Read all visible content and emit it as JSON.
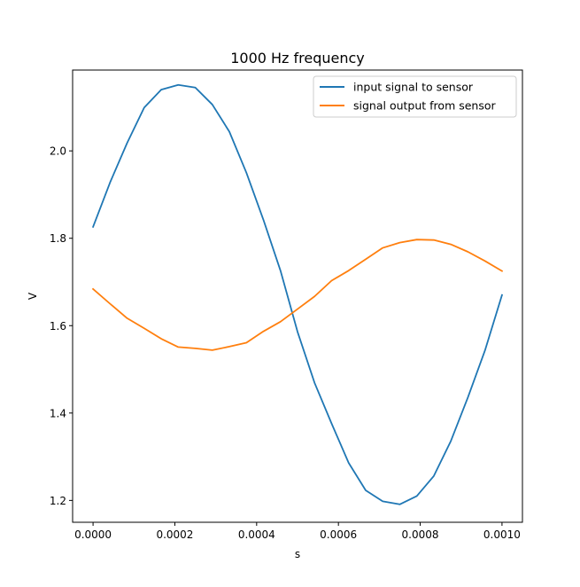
{
  "chart_data": {
    "type": "line",
    "title": "1000 Hz frequency",
    "xlabel": "s",
    "ylabel": "V",
    "xlim": [
      -5e-05,
      0.00105
    ],
    "ylim": [
      1.15,
      2.185
    ],
    "xticks": [
      0.0,
      0.0002,
      0.0004,
      0.0006,
      0.0008,
      0.001
    ],
    "xtick_labels": [
      "0.0000",
      "0.0002",
      "0.0004",
      "0.0006",
      "0.0008",
      "0.0010"
    ],
    "yticks": [
      1.2,
      1.4,
      1.6,
      1.8,
      2.0
    ],
    "ytick_labels": [
      "1.2",
      "1.4",
      "1.6",
      "1.8",
      "2.0"
    ],
    "grid": false,
    "legend_position": "top-right",
    "x": [
      0.0,
      4.17e-05,
      8.33e-05,
      0.000125,
      0.0001667,
      0.0002083,
      0.00025,
      0.0002917,
      0.0003333,
      0.000375,
      0.0004167,
      0.0004583,
      0.0005,
      0.0005417,
      0.0005833,
      0.000625,
      0.0006667,
      0.0007083,
      0.00075,
      0.0007917,
      0.0008333,
      0.000875,
      0.0009167,
      0.0009583,
      0.001
    ],
    "series": [
      {
        "name": "input signal to sensor",
        "color": "#1f77b4",
        "values": [
          1.826,
          1.928,
          2.018,
          2.099,
          2.14,
          2.151,
          2.145,
          2.106,
          2.044,
          1.95,
          1.842,
          1.726,
          1.586,
          1.469,
          1.376,
          1.286,
          1.223,
          1.198,
          1.191,
          1.21,
          1.256,
          1.336,
          1.436,
          1.543,
          1.67
        ]
      },
      {
        "name": "signal output from sensor",
        "color": "#ff7f0e",
        "values": [
          1.684,
          1.65,
          1.617,
          1.594,
          1.57,
          1.551,
          1.548,
          1.544,
          1.552,
          1.561,
          1.587,
          1.609,
          1.638,
          1.667,
          1.703,
          1.726,
          1.752,
          1.778,
          1.79,
          1.797,
          1.796,
          1.786,
          1.769,
          1.748,
          1.725
        ]
      }
    ]
  }
}
